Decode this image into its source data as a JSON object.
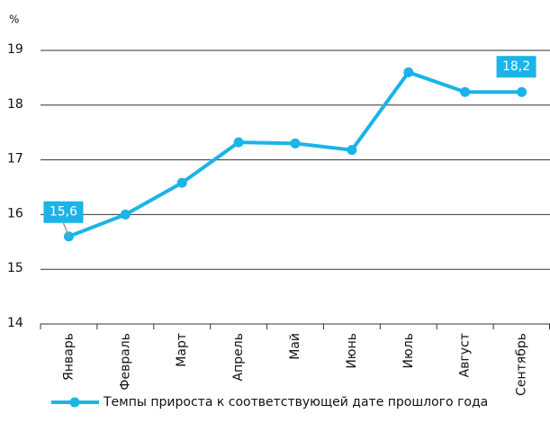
{
  "chart_data": {
    "type": "line",
    "y_label": "%",
    "categories": [
      "Январь",
      "Февраль",
      "Март",
      "Апрель",
      "Май",
      "Июнь",
      "Июль",
      "Август",
      "Сентябрь"
    ],
    "series": [
      {
        "name": "Темпы прироста к соответствующей дате прошлого года",
        "color": "#1ab4e8",
        "values": [
          15.6,
          16.0,
          16.58,
          17.32,
          17.3,
          17.18,
          18.6,
          18.24,
          18.24
        ],
        "value_labels": [
          "15,6",
          null,
          null,
          null,
          null,
          null,
          null,
          null,
          "18,2"
        ]
      }
    ],
    "ylim": [
      14,
      19
    ],
    "yticks": [
      14,
      15,
      16,
      17,
      18,
      19
    ],
    "grid": true,
    "legend": "bottom"
  }
}
